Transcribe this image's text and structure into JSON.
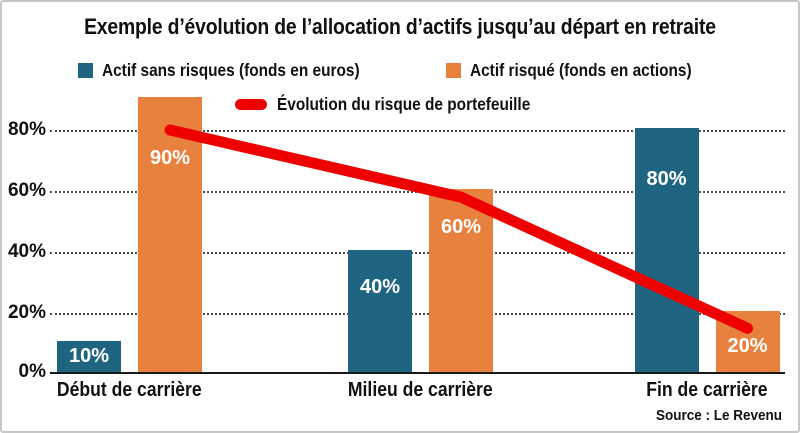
{
  "title": "Exemple d’évolution de l’allocation d’actifs jusqu’au départ en retraite",
  "legend": {
    "series1": "Actif sans risques (fonds en euros)",
    "series2": "Actif risqué (fonds en actions)",
    "line": "Évolution du risque de portefeuille"
  },
  "colors": {
    "safe": "#1f6582",
    "risky": "#e8813e",
    "risk_line": "#ee0000",
    "text": "#111111",
    "grid": "#4a4a4a"
  },
  "source": "Source : Le Revenu",
  "chart_data": {
    "type": "bar",
    "categories": [
      "Début de carrière",
      "Milieu de carrière",
      "Fin de carrière"
    ],
    "series": [
      {
        "name": "Actif sans risques (fonds en euros)",
        "color_key": "safe",
        "values": [
          10,
          40,
          80
        ],
        "labels": [
          "10%",
          "40%",
          "80%"
        ]
      },
      {
        "name": "Actif risqué (fonds en actions)",
        "color_key": "risky",
        "values": [
          90,
          60,
          20
        ],
        "labels": [
          "90%",
          "60%",
          "20%"
        ]
      }
    ],
    "line_series": {
      "name": "Évolution du risque de portefeuille",
      "values": [
        80,
        58,
        15
      ]
    },
    "yticks": [
      "80%",
      "60%",
      "40%",
      "20%",
      "0%"
    ],
    "ylim": [
      0,
      100
    ],
    "grid": "horizontal dotted lines at 20/40/60/80",
    "legend_position": "top"
  }
}
